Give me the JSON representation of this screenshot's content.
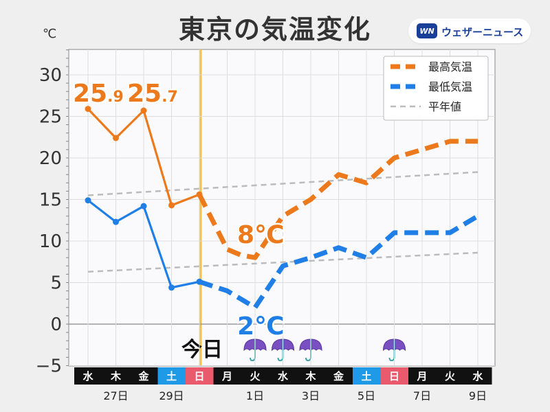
{
  "title": "東京の気温変化",
  "brand": {
    "logo_text": "WN",
    "name": "ウェザーニュース"
  },
  "chart_data": {
    "type": "line",
    "unit_label": "℃",
    "ylim": [
      -5,
      33
    ],
    "yticks": [
      -5,
      0,
      5,
      10,
      15,
      20,
      25,
      30
    ],
    "grid": true,
    "legend_position": "top-right",
    "today_label": "今日",
    "today_index": 4,
    "weekday_labels": [
      "水",
      "木",
      "金",
      "土",
      "日",
      "月",
      "火",
      "水",
      "木",
      "金",
      "土",
      "日",
      "月",
      "火",
      "水"
    ],
    "day_types": [
      "weekday",
      "weekday",
      "weekday",
      "sat",
      "sun",
      "weekday",
      "weekday",
      "weekday",
      "weekday",
      "weekday",
      "sat",
      "sun",
      "weekday",
      "weekday",
      "weekday"
    ],
    "date_labels": [
      {
        "index": 1,
        "text": "27日"
      },
      {
        "index": 3,
        "text": "29日"
      },
      {
        "index": 6,
        "text": "1日"
      },
      {
        "index": 8,
        "text": "3日"
      },
      {
        "index": 10,
        "text": "5日"
      },
      {
        "index": 12,
        "text": "7日"
      },
      {
        "index": 14,
        "text": "9日"
      }
    ],
    "series": [
      {
        "name": "最高気温",
        "color": "#ec7a1c",
        "observed": [
          25.9,
          22.4,
          25.7,
          14.3,
          15.6
        ],
        "forecast_x": [
          4,
          5,
          5.5,
          6,
          6.5,
          7,
          8,
          9,
          10,
          11,
          12,
          13,
          14
        ],
        "forecast": [
          15.6,
          9,
          8.3,
          8,
          10.5,
          13,
          15,
          18,
          17,
          20,
          21,
          22,
          22
        ]
      },
      {
        "name": "最低気温",
        "color": "#1f7fe6",
        "observed": [
          14.9,
          12.3,
          14.2,
          4.4,
          5.1
        ],
        "forecast_x": [
          4,
          5,
          6,
          7,
          8,
          9,
          10,
          11,
          12,
          13,
          14
        ],
        "forecast": [
          5.1,
          4,
          2,
          7,
          8,
          9.2,
          8,
          11,
          11,
          11,
          13
        ]
      },
      {
        "name": "平年値",
        "color": "#bbbbbb",
        "lines": [
          {
            "x": [
              0,
              14
            ],
            "y": [
              15.5,
              18.3
            ]
          },
          {
            "x": [
              0,
              14
            ],
            "y": [
              6.3,
              8.6
            ]
          }
        ]
      }
    ],
    "annotations": [
      {
        "series": 0,
        "index": 0,
        "main": "25",
        "small": ".9"
      },
      {
        "series": 0,
        "index": 2,
        "main": "25",
        "small": ".7"
      },
      {
        "series": 0,
        "index": 6,
        "main": "8℃",
        "small": ""
      },
      {
        "series": 1,
        "index": 6,
        "main": "2℃",
        "small": ""
      }
    ],
    "rain_icon": "umbrella-icon",
    "rain_days": [
      6,
      7,
      8,
      11
    ],
    "colors": {
      "saturday": "#1f9ae6",
      "sunday": "#e85a6c",
      "today_line": "#f4c24a",
      "weekday_bg": "#111111"
    }
  }
}
